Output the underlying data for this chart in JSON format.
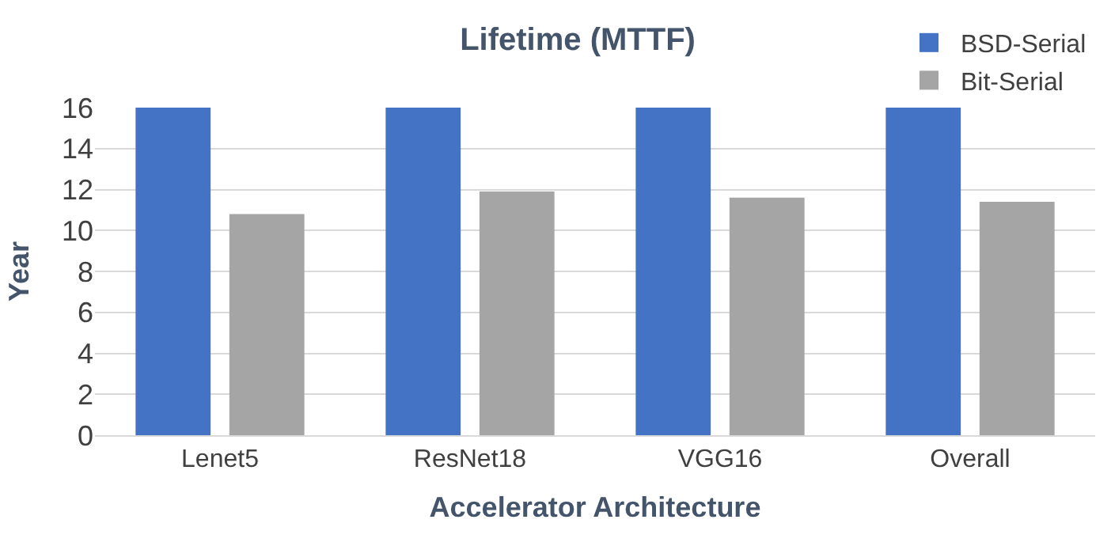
{
  "chart_data": {
    "type": "bar",
    "title": "Lifetime (MTTF)",
    "xlabel": "Accelerator Architecture",
    "ylabel": "Year",
    "categories": [
      "Lenet5",
      "ResNet18",
      "VGG16",
      "Overall"
    ],
    "series": [
      {
        "name": "BSD-Serial",
        "color": "#4472c4",
        "values": [
          16,
          16,
          16,
          16
        ]
      },
      {
        "name": "Bit-Serial",
        "color": "#a5a5a5",
        "values": [
          10.8,
          11.9,
          11.6,
          11.4
        ]
      }
    ],
    "ylim": [
      0,
      16
    ],
    "yticks": [
      0,
      2,
      4,
      6,
      8,
      10,
      12,
      14,
      16
    ],
    "grid": "y",
    "legend": "top right"
  }
}
